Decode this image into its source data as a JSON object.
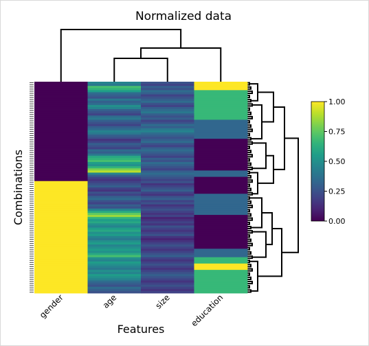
{
  "chart_data": {
    "type": "heatmap",
    "title": "Normalized data",
    "xlabel": "Features",
    "ylabel": "Combinations",
    "columns": [
      "gender",
      "age",
      "size",
      "education"
    ],
    "column_order_note": "",
    "colormap": "viridis",
    "colorbar": {
      "min": 0.0,
      "max": 1.0,
      "ticks": [
        "0.00",
        "0.25",
        "0.50",
        "0.75",
        "1.00"
      ]
    },
    "rows": 100,
    "gender_blocks": [
      {
        "from": 0,
        "to": 47,
        "value": 0.0
      },
      {
        "from": 47,
        "to": 100,
        "value": 1.0
      }
    ],
    "education_blocks": [
      {
        "from": 0,
        "to": 4,
        "value": 1.0
      },
      {
        "from": 4,
        "to": 14,
        "value": 0.67
      },
      {
        "from": 14,
        "to": 18,
        "value": 0.67
      },
      {
        "from": 18,
        "to": 27,
        "value": 0.33
      },
      {
        "from": 27,
        "to": 42,
        "value": 0.0
      },
      {
        "from": 42,
        "to": 45,
        "value": 0.33
      },
      {
        "from": 45,
        "to": 53,
        "value": 0.0
      },
      {
        "from": 53,
        "to": 63,
        "value": 0.33
      },
      {
        "from": 63,
        "to": 79,
        "value": 0.0
      },
      {
        "from": 79,
        "to": 83,
        "value": 0.33
      },
      {
        "from": 83,
        "to": 86,
        "value": 0.67
      },
      {
        "from": 86,
        "to": 89,
        "value": 1.0
      },
      {
        "from": 89,
        "to": 100,
        "value": 0.67
      }
    ],
    "age_values": [
      0.45,
      0.4,
      0.7,
      0.65,
      0.55,
      0.35,
      0.3,
      0.25,
      0.4,
      0.3,
      0.35,
      0.5,
      0.45,
      0.3,
      0.25,
      0.2,
      0.35,
      0.4,
      0.3,
      0.25,
      0.2,
      0.3,
      0.35,
      0.45,
      0.4,
      0.3,
      0.25,
      0.15,
      0.2,
      0.3,
      0.25,
      0.2,
      0.35,
      0.3,
      0.4,
      0.6,
      0.65,
      0.7,
      0.55,
      0.5,
      0.65,
      0.8,
      0.9,
      0.45,
      0.3,
      0.2,
      0.15,
      0.2,
      0.25,
      0.3,
      0.2,
      0.15,
      0.25,
      0.2,
      0.3,
      0.35,
      0.25,
      0.2,
      0.3,
      0.25,
      0.45,
      0.6,
      0.75,
      0.85,
      0.65,
      0.55,
      0.6,
      0.5,
      0.45,
      0.55,
      0.6,
      0.5,
      0.55,
      0.45,
      0.4,
      0.5,
      0.55,
      0.45,
      0.5,
      0.55,
      0.5,
      0.6,
      0.7,
      0.5,
      0.45,
      0.55,
      0.5,
      0.45,
      0.4,
      0.5,
      0.45,
      0.55,
      0.5,
      0.45,
      0.35,
      0.3,
      0.25,
      0.35,
      0.3,
      0.25
    ],
    "size_values": [
      0.25,
      0.2,
      0.3,
      0.25,
      0.35,
      0.3,
      0.2,
      0.25,
      0.3,
      0.35,
      0.25,
      0.2,
      0.3,
      0.35,
      0.4,
      0.3,
      0.25,
      0.3,
      0.2,
      0.25,
      0.35,
      0.3,
      0.4,
      0.45,
      0.35,
      0.3,
      0.25,
      0.3,
      0.35,
      0.25,
      0.2,
      0.3,
      0.35,
      0.3,
      0.25,
      0.2,
      0.3,
      0.25,
      0.35,
      0.3,
      0.25,
      0.2,
      0.3,
      0.35,
      0.3,
      0.25,
      0.2,
      0.25,
      0.15,
      0.2,
      0.25,
      0.3,
      0.2,
      0.15,
      0.25,
      0.3,
      0.2,
      0.25,
      0.15,
      0.2,
      0.25,
      0.2,
      0.15,
      0.2,
      0.1,
      0.15,
      0.2,
      0.15,
      0.25,
      0.2,
      0.15,
      0.2,
      0.25,
      0.15,
      0.1,
      0.15,
      0.2,
      0.25,
      0.2,
      0.15,
      0.2,
      0.25,
      0.3,
      0.2,
      0.15,
      0.2,
      0.25,
      0.2,
      0.15,
      0.2,
      0.25,
      0.3,
      0.25,
      0.2,
      0.15,
      0.2,
      0.25,
      0.2,
      0.15,
      0.2
    ]
  }
}
